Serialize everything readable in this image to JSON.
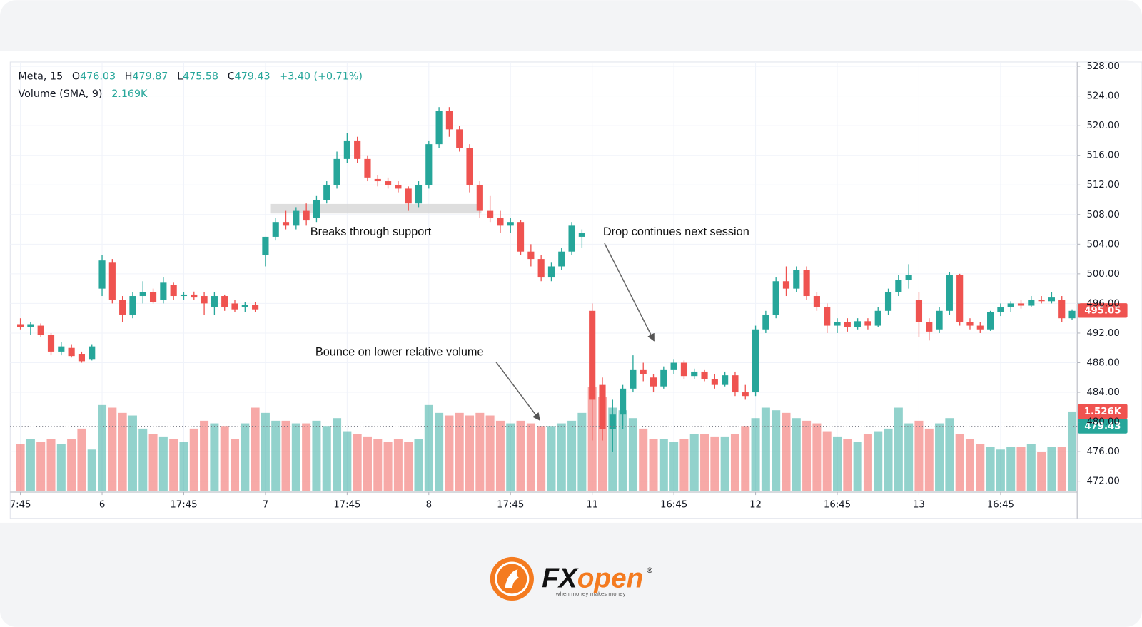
{
  "chart_data": {
    "type": "candlestick",
    "header": {
      "symbol": "Meta, 15",
      "ohlc": [
        [
          "O",
          "476.03"
        ],
        [
          "H",
          "479.87"
        ],
        [
          "L",
          "475.58"
        ],
        [
          "C",
          "479.43"
        ]
      ],
      "change": "+3.40 (+0.71%)",
      "indicator": "Volume (SMA, 9)",
      "indicator_value": "2.169K"
    },
    "up_color": "#26a69a",
    "down_color": "#ef5350",
    "xlim": [
      -1,
      103.5
    ],
    "xticks": [
      {
        "value": 0,
        "label": "7:45"
      },
      {
        "value": 8,
        "label": "6"
      },
      {
        "value": 16,
        "label": "17:45"
      },
      {
        "value": 24,
        "label": "7"
      },
      {
        "value": 32,
        "label": "17:45"
      },
      {
        "value": 40,
        "label": "8"
      },
      {
        "value": 48,
        "label": "17:45"
      },
      {
        "value": 56,
        "label": "11"
      },
      {
        "value": 64,
        "label": "16:45"
      },
      {
        "value": 72,
        "label": "12"
      },
      {
        "value": 80,
        "label": "16:45"
      },
      {
        "value": 88,
        "label": "13"
      },
      {
        "value": 96,
        "label": "16:45"
      }
    ],
    "ylim": [
      470.62,
      528.59
    ],
    "yticks": [
      {
        "value": 528,
        "label": "528.00"
      },
      {
        "value": 524,
        "label": "524.00"
      },
      {
        "value": 520,
        "label": "520.00"
      },
      {
        "value": 516,
        "label": "516.00"
      },
      {
        "value": 512,
        "label": "512.00"
      },
      {
        "value": 508,
        "label": "508.00"
      },
      {
        "value": 504,
        "label": "504.00"
      },
      {
        "value": 500,
        "label": "500.00"
      },
      {
        "value": 496,
        "label": "496.00"
      },
      {
        "value": 492,
        "label": "492.00"
      },
      {
        "value": 488,
        "label": "488.00"
      },
      {
        "value": 484,
        "label": "484.00"
      },
      {
        "value": 480,
        "label": "480.00"
      },
      {
        "value": 476,
        "label": "476.00"
      },
      {
        "value": 472,
        "label": "472.00"
      }
    ],
    "grid": true,
    "volume_lim": [
      0,
      8.2
    ],
    "candles": [
      [
        493.2,
        494,
        492.5,
        492.8
      ],
      [
        492.8,
        493.5,
        491.8,
        493.2
      ],
      [
        493,
        493.3,
        491.5,
        491.8
      ],
      [
        491.8,
        492,
        489,
        489.5
      ],
      [
        489.5,
        490.8,
        489,
        490.2
      ],
      [
        490,
        490.5,
        488.7,
        488.9
      ],
      [
        489.2,
        489.5,
        488,
        488.2
      ],
      [
        488.5,
        490.5,
        488.3,
        490.2
      ],
      [
        498,
        502.5,
        497,
        501.8
      ],
      [
        501.5,
        502,
        496,
        496.5
      ],
      [
        496.5,
        497,
        493.5,
        494.5
      ],
      [
        494.5,
        497.5,
        494,
        497
      ],
      [
        497,
        499,
        496,
        497.5
      ],
      [
        497.5,
        498,
        496,
        496.2
      ],
      [
        496.5,
        499.5,
        496,
        498.8
      ],
      [
        498.5,
        498.8,
        496.5,
        497
      ],
      [
        497,
        497.5,
        496.5,
        497.2
      ],
      [
        497.2,
        497.6,
        496.5,
        496.8
      ],
      [
        497,
        497.5,
        494.5,
        496
      ],
      [
        495.5,
        497.5,
        494.5,
        497
      ],
      [
        497,
        497.2,
        495,
        495.5
      ],
      [
        496,
        496.5,
        494.8,
        495.2
      ],
      [
        495.5,
        496.2,
        494.8,
        495.8
      ],
      [
        495.8,
        496.2,
        494.8,
        495.2
      ],
      [
        502.5,
        505,
        501,
        505
      ],
      [
        505,
        507.5,
        504.5,
        507
      ],
      [
        507,
        508.5,
        506,
        506.5
      ],
      [
        506.5,
        509,
        506,
        508.5
      ],
      [
        508.5,
        509.5,
        506.5,
        507.2
      ],
      [
        507.5,
        510.5,
        507,
        510
      ],
      [
        510,
        512.5,
        509.5,
        512
      ],
      [
        512,
        516.5,
        511.5,
        515.5
      ],
      [
        515.5,
        519,
        515,
        518
      ],
      [
        518,
        518.5,
        515,
        515.5
      ],
      [
        515.5,
        516,
        512.5,
        513
      ],
      [
        512.8,
        513.3,
        511.8,
        512.5
      ],
      [
        512.5,
        513,
        511.5,
        512
      ],
      [
        512,
        512.5,
        511,
        511.5
      ],
      [
        511.5,
        511.8,
        508.5,
        509.5
      ],
      [
        509.5,
        512.5,
        509,
        512
      ],
      [
        512,
        518,
        511.5,
        517.5
      ],
      [
        517.5,
        522.5,
        517,
        522
      ],
      [
        522,
        522.5,
        518.5,
        519.5
      ],
      [
        519.5,
        520,
        516.5,
        517
      ],
      [
        517,
        517.5,
        511,
        512
      ],
      [
        512,
        512.5,
        507.5,
        508.5
      ],
      [
        508.5,
        510.5,
        507,
        507.5
      ],
      [
        507.5,
        508.5,
        505.5,
        506.5
      ],
      [
        506.5,
        507.5,
        505.5,
        507
      ],
      [
        507,
        507.3,
        502.5,
        503
      ],
      [
        503,
        504,
        501,
        502
      ],
      [
        502,
        502.5,
        499,
        499.5
      ],
      [
        499.5,
        501.5,
        499,
        501
      ],
      [
        501,
        503.5,
        500.5,
        503
      ],
      [
        503,
        507,
        502.5,
        506.5
      ],
      [
        505,
        506,
        503.5,
        505.5
      ],
      [
        495,
        496,
        477.5,
        483
      ],
      [
        485,
        486,
        477.5,
        479
      ],
      [
        479,
        483,
        476,
        481
      ],
      [
        481,
        485,
        479,
        484.5
      ],
      [
        484.5,
        489,
        484,
        487
      ],
      [
        487,
        488,
        485.5,
        486.5
      ],
      [
        486,
        486.5,
        484,
        484.8
      ],
      [
        484.8,
        487.5,
        484.5,
        487
      ],
      [
        487,
        488.5,
        486.5,
        488
      ],
      [
        488,
        488.3,
        485.8,
        486.2
      ],
      [
        486.2,
        487.2,
        485.8,
        486.8
      ],
      [
        486.8,
        487,
        485.5,
        485.8
      ],
      [
        485.8,
        486.5,
        484.5,
        485
      ],
      [
        485,
        486.8,
        484.8,
        486.3
      ],
      [
        486.3,
        486.8,
        483.5,
        484
      ],
      [
        484,
        485,
        483,
        483.5
      ],
      [
        484,
        493,
        483.5,
        492.5
      ],
      [
        492.5,
        495,
        492,
        494.5
      ],
      [
        494.5,
        499.5,
        494,
        499
      ],
      [
        499,
        501,
        497,
        498
      ],
      [
        498,
        501,
        497.5,
        500.5
      ],
      [
        500.5,
        501,
        496.5,
        497
      ],
      [
        497,
        497.5,
        495,
        495.5
      ],
      [
        495.5,
        496,
        492,
        493
      ],
      [
        493,
        494,
        492,
        493.5
      ],
      [
        493.5,
        494,
        492.2,
        492.8
      ],
      [
        492.8,
        494,
        492.5,
        493.6
      ],
      [
        493.6,
        494,
        492.5,
        493
      ],
      [
        493,
        495.5,
        492.8,
        495
      ],
      [
        495,
        498,
        494.5,
        497.5
      ],
      [
        497.5,
        499.8,
        497,
        499.2
      ],
      [
        499.2,
        501.3,
        498,
        499.8
      ],
      [
        496.5,
        497.5,
        491.5,
        493.5
      ],
      [
        493.5,
        494,
        491,
        492.2
      ],
      [
        492.5,
        495.5,
        492,
        495
      ],
      [
        495,
        500.2,
        494.5,
        499.8
      ],
      [
        499.8,
        500,
        493,
        493.5
      ],
      [
        493.5,
        494,
        492.5,
        493
      ],
      [
        493,
        493.5,
        492,
        492.5
      ],
      [
        492.5,
        495,
        492.3,
        494.8
      ],
      [
        494.8,
        496,
        494.3,
        495.5
      ],
      [
        495.5,
        496.3,
        494.8,
        496
      ],
      [
        496,
        496.5,
        495.3,
        495.7
      ],
      [
        495.7,
        497,
        495.5,
        496.5
      ],
      [
        496.5,
        497,
        496,
        496.3
      ],
      [
        496.3,
        497.5,
        496,
        496.8
      ],
      [
        496.5,
        497,
        493.5,
        494
      ],
      [
        494,
        495.2,
        493.8,
        495
      ]
    ],
    "volume": [
      0.9,
      1.0,
      0.95,
      1.0,
      0.9,
      1.0,
      1.2,
      0.8,
      1.65,
      1.6,
      1.5,
      1.45,
      1.2,
      1.1,
      1.05,
      1.0,
      0.95,
      1.2,
      1.35,
      1.3,
      1.25,
      1.0,
      1.3,
      1.6,
      1.5,
      1.35,
      1.35,
      1.3,
      1.3,
      1.35,
      1.25,
      1.4,
      1.15,
      1.1,
      1.05,
      1.0,
      0.95,
      1.0,
      0.95,
      1.0,
      1.65,
      1.5,
      1.45,
      1.5,
      1.45,
      1.5,
      1.45,
      1.35,
      1.3,
      1.35,
      1.3,
      1.25,
      1.25,
      1.3,
      1.35,
      1.5,
      2.0,
      1.8,
      1.6,
      1.55,
      1.4,
      1.2,
      1.0,
      1.0,
      0.95,
      1.0,
      1.1,
      1.1,
      1.05,
      1.05,
      1.1,
      1.25,
      1.4,
      1.6,
      1.55,
      1.5,
      1.4,
      1.35,
      1.3,
      1.15,
      1.05,
      1.0,
      0.95,
      1.1,
      1.15,
      1.2,
      1.6,
      1.3,
      1.35,
      1.2,
      1.3,
      1.4,
      1.1,
      1.0,
      0.9,
      0.85,
      0.8,
      0.85,
      0.85,
      0.9,
      0.75,
      0.85,
      0.85,
      1.526
    ],
    "price_tags": [
      {
        "value": 495.05,
        "color": "#ef5350"
      },
      {
        "value": 479.43,
        "color": "#26a69a",
        "dotted": true
      }
    ],
    "volume_tag": {
      "value": 1.526,
      "label": "1.526K",
      "color": "#ef5350"
    },
    "annotations": [
      "Breaks through support",
      "Drop continues next session",
      "Bounce on lower relative volume"
    ],
    "logo": {
      "fx": "FX",
      "open": "open",
      "mark": "®",
      "tagline": "when money makes money"
    }
  }
}
